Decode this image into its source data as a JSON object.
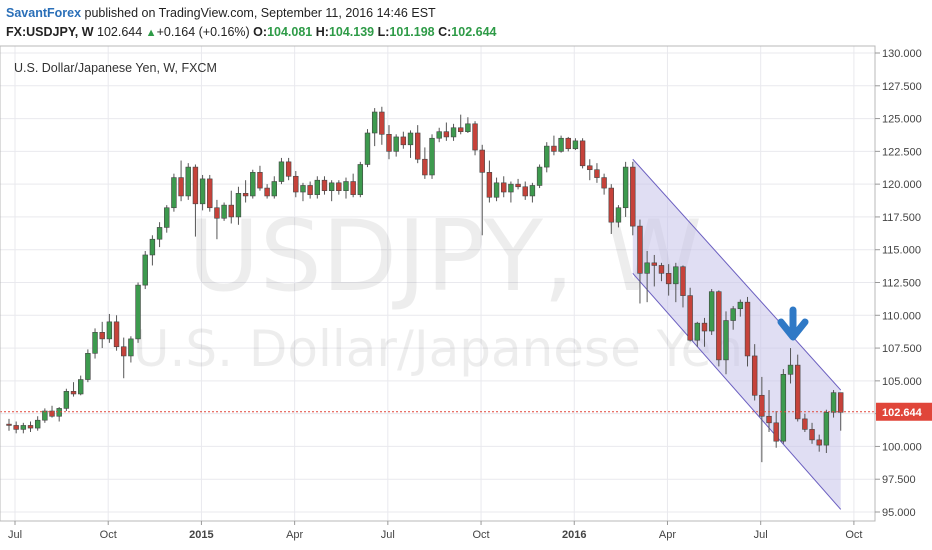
{
  "header": {
    "author": "SavantForex",
    "published_text": "published on TradingView.com, September 11, 2016 14:46 EST",
    "symbol": "FX:USDJPY, W",
    "last": "102.644",
    "change_arrow": "▲",
    "change": "+0.164 (+0.16%)",
    "o_label": "O:",
    "o_value": "104.081",
    "h_label": "H:",
    "h_value": "104.139",
    "l_label": "L:",
    "l_value": "101.198",
    "c_label": "C:",
    "c_value": "102.644"
  },
  "pane": {
    "legend": "U.S. Dollar/Japanese Yen, W, FXCM",
    "watermark_symbol": "USDJPY, W",
    "watermark_name": "U.S. Dollar/Japanese Yen"
  },
  "colors": {
    "up": "#3d9a4e",
    "down": "#c6423a",
    "grid": "#e9e9ee",
    "channel_fill": "#c7c2ea",
    "channel_stroke": "#6b5fc0",
    "price_line": "#e0463a",
    "arrow": "#2f79c6"
  },
  "chart_data": {
    "type": "candlestick",
    "timeframe": "W",
    "title": "U.S. Dollar/Japanese Yen, W, FXCM",
    "xaxis_ticks": [
      "Jul",
      "Oct",
      "2015",
      "Apr",
      "Jul",
      "Oct",
      "2016",
      "Apr",
      "Jul",
      "Oct"
    ],
    "yaxis_ticks": [
      "130.000",
      "127.500",
      "125.000",
      "122.500",
      "120.000",
      "117.500",
      "115.000",
      "112.500",
      "110.000",
      "107.500",
      "105.000",
      "102.500",
      "100.000",
      "97.500",
      "95.000"
    ],
    "ylim": [
      94.5,
      131.0
    ],
    "last_price": 102.644,
    "last_price_label": "102.644",
    "candles": [
      [
        101.7,
        102.1,
        101.2,
        101.6
      ],
      [
        101.6,
        101.9,
        101.0,
        101.3
      ],
      [
        101.3,
        101.8,
        101.0,
        101.6
      ],
      [
        101.6,
        101.9,
        101.1,
        101.4
      ],
      [
        101.4,
        102.3,
        101.2,
        102.0
      ],
      [
        102.0,
        102.9,
        101.8,
        102.7
      ],
      [
        102.7,
        103.1,
        102.2,
        102.3
      ],
      [
        102.3,
        103.0,
        101.9,
        102.9
      ],
      [
        102.9,
        104.4,
        102.7,
        104.2
      ],
      [
        104.2,
        104.9,
        103.8,
        104.0
      ],
      [
        104.0,
        105.4,
        103.9,
        105.1
      ],
      [
        105.1,
        107.4,
        104.9,
        107.1
      ],
      [
        107.1,
        109.0,
        106.7,
        108.7
      ],
      [
        108.7,
        109.5,
        107.5,
        108.2
      ],
      [
        108.2,
        110.1,
        107.9,
        109.5
      ],
      [
        109.5,
        110.0,
        107.3,
        107.6
      ],
      [
        107.6,
        108.3,
        105.2,
        106.9
      ],
      [
        106.9,
        108.4,
        106.4,
        108.2
      ],
      [
        108.2,
        112.5,
        107.9,
        112.3
      ],
      [
        112.3,
        114.9,
        112.0,
        114.6
      ],
      [
        114.6,
        116.1,
        113.8,
        115.8
      ],
      [
        115.8,
        117.1,
        115.2,
        116.7
      ],
      [
        116.7,
        118.4,
        116.3,
        118.2
      ],
      [
        118.2,
        120.8,
        117.9,
        120.5
      ],
      [
        120.5,
        121.8,
        118.7,
        119.1
      ],
      [
        119.1,
        121.6,
        118.8,
        121.3
      ],
      [
        121.3,
        121.5,
        116.0,
        118.5
      ],
      [
        118.5,
        120.7,
        118.0,
        120.4
      ],
      [
        120.4,
        120.7,
        117.9,
        118.2
      ],
      [
        118.2,
        118.8,
        115.8,
        117.4
      ],
      [
        117.4,
        118.6,
        117.2,
        118.4
      ],
      [
        118.4,
        119.5,
        117.0,
        117.5
      ],
      [
        117.5,
        119.8,
        116.9,
        119.3
      ],
      [
        119.3,
        120.3,
        118.6,
        119.1
      ],
      [
        119.1,
        121.1,
        118.9,
        120.9
      ],
      [
        120.9,
        121.4,
        119.5,
        119.7
      ],
      [
        119.7,
        120.0,
        118.9,
        119.1
      ],
      [
        119.1,
        120.6,
        118.9,
        120.2
      ],
      [
        120.2,
        122.0,
        120.0,
        121.7
      ],
      [
        121.7,
        122.0,
        120.3,
        120.6
      ],
      [
        120.6,
        121.0,
        119.0,
        119.4
      ],
      [
        119.4,
        120.1,
        118.7,
        119.9
      ],
      [
        119.9,
        120.2,
        118.9,
        119.2
      ],
      [
        119.2,
        120.6,
        118.9,
        120.3
      ],
      [
        120.3,
        120.6,
        119.2,
        119.5
      ],
      [
        119.5,
        120.3,
        118.7,
        120.1
      ],
      [
        120.1,
        120.3,
        119.2,
        119.5
      ],
      [
        119.5,
        120.5,
        118.9,
        120.2
      ],
      [
        120.2,
        120.8,
        119.0,
        119.2
      ],
      [
        119.2,
        121.7,
        119.0,
        121.5
      ],
      [
        121.5,
        124.2,
        121.3,
        123.9
      ],
      [
        123.9,
        125.8,
        122.9,
        125.5
      ],
      [
        125.5,
        125.9,
        123.0,
        123.8
      ],
      [
        123.8,
        124.5,
        121.9,
        122.5
      ],
      [
        122.5,
        123.8,
        122.1,
        123.6
      ],
      [
        123.6,
        124.0,
        122.7,
        123.0
      ],
      [
        123.0,
        124.1,
        122.0,
        123.9
      ],
      [
        123.9,
        124.5,
        121.6,
        121.9
      ],
      [
        121.9,
        122.8,
        120.4,
        120.7
      ],
      [
        120.7,
        123.8,
        120.4,
        123.5
      ],
      [
        123.5,
        124.3,
        123.2,
        124.0
      ],
      [
        124.0,
        124.7,
        123.3,
        123.6
      ],
      [
        123.6,
        124.6,
        123.3,
        124.3
      ],
      [
        124.3,
        125.3,
        123.8,
        124.0
      ],
      [
        124.0,
        125.1,
        123.9,
        124.6
      ],
      [
        124.6,
        124.8,
        122.2,
        122.6
      ],
      [
        122.6,
        123.0,
        116.1,
        120.9
      ],
      [
        120.9,
        121.8,
        118.6,
        119.0
      ],
      [
        119.0,
        120.5,
        118.7,
        120.1
      ],
      [
        120.1,
        120.6,
        119.0,
        119.4
      ],
      [
        119.4,
        120.2,
        118.6,
        120.0
      ],
      [
        120.0,
        120.4,
        119.6,
        119.8
      ],
      [
        119.8,
        120.2,
        118.8,
        119.1
      ],
      [
        119.1,
        120.1,
        118.6,
        119.9
      ],
      [
        119.9,
        121.5,
        119.7,
        121.3
      ],
      [
        121.3,
        123.2,
        120.9,
        122.9
      ],
      [
        122.9,
        123.7,
        122.2,
        122.5
      ],
      [
        122.5,
        123.7,
        122.4,
        123.5
      ],
      [
        123.5,
        123.6,
        122.5,
        122.7
      ],
      [
        122.7,
        123.5,
        122.6,
        123.3
      ],
      [
        123.3,
        123.5,
        121.2,
        121.4
      ],
      [
        121.4,
        121.9,
        120.3,
        121.1
      ],
      [
        121.1,
        121.6,
        120.1,
        120.5
      ],
      [
        120.5,
        120.8,
        119.2,
        119.7
      ],
      [
        119.7,
        120.0,
        116.2,
        117.1
      ],
      [
        117.1,
        118.4,
        116.7,
        118.2
      ],
      [
        118.2,
        121.7,
        117.5,
        121.3
      ],
      [
        121.3,
        121.7,
        116.1,
        116.8
      ],
      [
        116.8,
        117.3,
        110.9,
        113.2
      ],
      [
        113.2,
        114.9,
        111.0,
        114.0
      ],
      [
        114.0,
        114.6,
        112.2,
        113.8
      ],
      [
        113.8,
        114.0,
        112.6,
        113.2
      ],
      [
        113.2,
        113.9,
        111.5,
        112.4
      ],
      [
        112.4,
        114.0,
        111.0,
        113.7
      ],
      [
        113.7,
        113.8,
        110.6,
        111.5
      ],
      [
        111.5,
        112.1,
        108.0,
        108.1
      ],
      [
        108.1,
        109.5,
        107.6,
        109.4
      ],
      [
        109.4,
        109.8,
        107.6,
        108.8
      ],
      [
        108.8,
        112.0,
        108.5,
        111.8
      ],
      [
        111.8,
        111.9,
        106.1,
        106.6
      ],
      [
        106.6,
        110.3,
        105.5,
        109.6
      ],
      [
        109.6,
        110.7,
        108.9,
        110.5
      ],
      [
        110.5,
        111.2,
        109.9,
        111.0
      ],
      [
        111.0,
        111.4,
        106.1,
        106.9
      ],
      [
        106.9,
        107.8,
        103.5,
        103.9
      ],
      [
        103.9,
        105.3,
        98.8,
        102.3
      ],
      [
        102.3,
        104.3,
        101.1,
        101.8
      ],
      [
        101.8,
        102.7,
        99.9,
        100.4
      ],
      [
        100.4,
        105.9,
        100.2,
        105.5
      ],
      [
        105.5,
        107.5,
        104.8,
        106.2
      ],
      [
        106.2,
        107.0,
        101.9,
        102.1
      ],
      [
        102.1,
        102.5,
        101.1,
        101.3
      ],
      [
        101.3,
        101.8,
        100.2,
        100.5
      ],
      [
        100.5,
        100.9,
        99.6,
        100.1
      ],
      [
        100.1,
        102.8,
        99.5,
        102.6
      ],
      [
        102.6,
        104.3,
        102.2,
        104.1
      ],
      [
        104.1,
        104.1,
        101.2,
        102.6
      ]
    ],
    "channel": {
      "upper": [
        [
          87,
          121.9
        ],
        [
          116,
          104.3
        ]
      ],
      "lower": [
        [
          87,
          113.2
        ],
        [
          116,
          95.2
        ]
      ]
    },
    "annotation": "down-arrow"
  }
}
